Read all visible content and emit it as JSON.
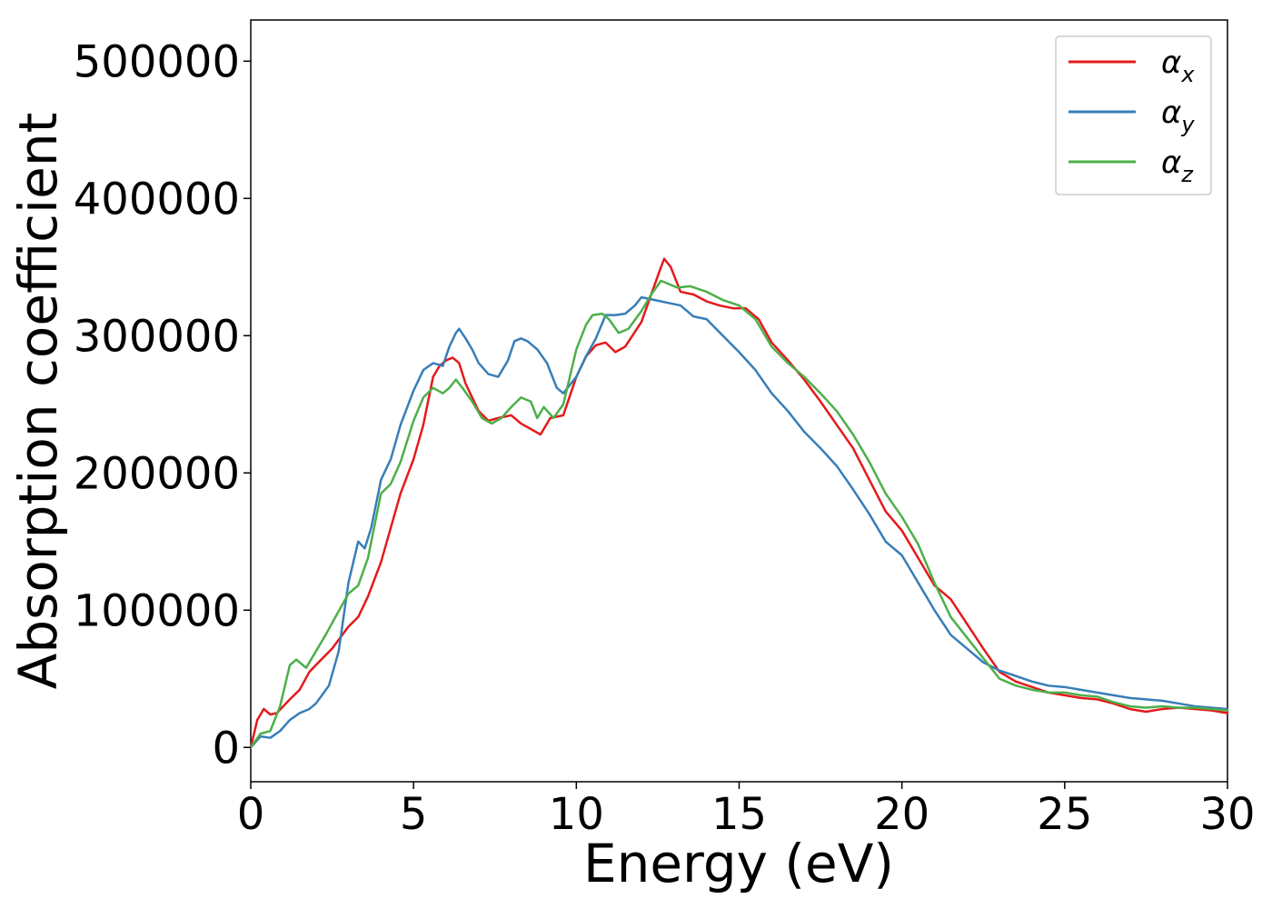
{
  "chart_data": {
    "type": "line",
    "title": "",
    "xlabel": "Energy (eV)",
    "ylabel": "Absorption coefficient",
    "xlim": [
      0,
      30
    ],
    "ylim": [
      -25000,
      530000
    ],
    "grid": false,
    "legend_position": "top-right",
    "xticks": [
      0,
      5,
      10,
      15,
      20,
      25,
      30
    ],
    "yticks": [
      0,
      100000,
      200000,
      300000,
      400000,
      500000
    ],
    "series": [
      {
        "name": "αx",
        "legend_base": "α",
        "legend_sub": "x",
        "color": "#e41a1c",
        "x": [
          0,
          0.2,
          0.4,
          0.6,
          0.8,
          1.0,
          1.2,
          1.5,
          1.8,
          2.0,
          2.5,
          3.0,
          3.3,
          3.6,
          4.0,
          4.3,
          4.6,
          5.0,
          5.3,
          5.6,
          5.8,
          6.0,
          6.2,
          6.4,
          6.6,
          6.8,
          7.0,
          7.3,
          7.6,
          8.0,
          8.3,
          8.6,
          8.9,
          9.2,
          9.6,
          10.0,
          10.3,
          10.6,
          10.9,
          11.2,
          11.5,
          12.0,
          12.3,
          12.6,
          12.7,
          12.9,
          13.2,
          13.6,
          14.0,
          14.4,
          14.8,
          15.2,
          15.6,
          16.0,
          16.5,
          17.0,
          17.5,
          18.0,
          18.5,
          19.0,
          19.5,
          20.0,
          20.5,
          21.0,
          21.5,
          22.0,
          22.5,
          23.0,
          23.5,
          24.0,
          24.5,
          25.0,
          25.5,
          26.0,
          26.5,
          27.0,
          27.5,
          28.0,
          28.5,
          29.0,
          29.5,
          30.0
        ],
        "y": [
          0,
          20000,
          28000,
          24000,
          25000,
          30000,
          35000,
          42000,
          55000,
          60000,
          72000,
          88000,
          95000,
          110000,
          135000,
          160000,
          185000,
          210000,
          235000,
          270000,
          278000,
          282000,
          284000,
          280000,
          265000,
          255000,
          245000,
          238000,
          240000,
          242000,
          236000,
          232000,
          228000,
          240000,
          242000,
          270000,
          285000,
          293000,
          295000,
          288000,
          292000,
          310000,
          330000,
          350000,
          356000,
          350000,
          332000,
          330000,
          325000,
          322000,
          320000,
          320000,
          312000,
          295000,
          282000,
          268000,
          252000,
          235000,
          218000,
          195000,
          172000,
          158000,
          138000,
          118000,
          108000,
          90000,
          72000,
          55000,
          48000,
          44000,
          40000,
          38000,
          36000,
          35000,
          32000,
          28000,
          26000,
          28000,
          29000,
          28000,
          27000,
          25000
        ]
      },
      {
        "name": "αy",
        "legend_base": "α",
        "legend_sub": "y",
        "color": "#377eb8",
        "x": [
          0,
          0.3,
          0.6,
          0.9,
          1.2,
          1.5,
          1.8,
          2.0,
          2.4,
          2.7,
          3.0,
          3.3,
          3.5,
          3.7,
          4.0,
          4.3,
          4.6,
          5.0,
          5.3,
          5.6,
          5.9,
          6.1,
          6.3,
          6.4,
          6.6,
          6.8,
          7.0,
          7.3,
          7.6,
          7.9,
          8.1,
          8.3,
          8.5,
          8.8,
          9.1,
          9.4,
          9.6,
          10.0,
          10.3,
          10.6,
          10.9,
          11.2,
          11.5,
          11.8,
          12.0,
          12.4,
          12.8,
          13.2,
          13.6,
          14.0,
          14.5,
          15.0,
          15.5,
          16.0,
          16.5,
          17.0,
          17.5,
          18.0,
          18.5,
          19.0,
          19.5,
          20.0,
          20.5,
          21.0,
          21.5,
          22.0,
          22.5,
          23.0,
          23.5,
          24.0,
          24.5,
          25.0,
          25.5,
          26.0,
          26.5,
          27.0,
          27.5,
          28.0,
          28.5,
          29.0,
          29.5,
          30.0
        ],
        "y": [
          0,
          8000,
          7000,
          12000,
          20000,
          25000,
          28000,
          32000,
          45000,
          70000,
          120000,
          150000,
          145000,
          160000,
          195000,
          210000,
          235000,
          260000,
          275000,
          280000,
          278000,
          292000,
          302000,
          305000,
          298000,
          290000,
          280000,
          272000,
          270000,
          282000,
          296000,
          298000,
          296000,
          290000,
          280000,
          262000,
          258000,
          270000,
          285000,
          298000,
          315000,
          315000,
          316000,
          322000,
          328000,
          326000,
          324000,
          322000,
          314000,
          312000,
          300000,
          288000,
          275000,
          258000,
          245000,
          230000,
          218000,
          205000,
          188000,
          170000,
          150000,
          140000,
          120000,
          100000,
          82000,
          72000,
          62000,
          56000,
          52000,
          48000,
          45000,
          44000,
          42000,
          40000,
          38000,
          36000,
          35000,
          34000,
          32000,
          30000,
          29000,
          28000
        ]
      },
      {
        "name": "αz",
        "legend_base": "α",
        "legend_sub": "z",
        "color": "#4daf4a",
        "x": [
          0,
          0.3,
          0.6,
          0.9,
          1.2,
          1.4,
          1.7,
          2.0,
          2.3,
          2.6,
          3.0,
          3.3,
          3.6,
          4.0,
          4.3,
          4.6,
          5.0,
          5.3,
          5.6,
          5.9,
          6.1,
          6.3,
          6.5,
          6.8,
          7.1,
          7.4,
          7.7,
          8.0,
          8.3,
          8.6,
          8.8,
          9.0,
          9.3,
          9.6,
          10.0,
          10.3,
          10.5,
          10.8,
          11.0,
          11.3,
          11.6,
          12.0,
          12.3,
          12.6,
          12.8,
          13.1,
          13.5,
          14.0,
          14.5,
          15.0,
          15.5,
          16.0,
          16.5,
          17.0,
          17.5,
          18.0,
          18.5,
          19.0,
          19.5,
          20.0,
          20.5,
          21.0,
          21.5,
          22.0,
          22.5,
          23.0,
          23.5,
          24.0,
          24.5,
          25.0,
          25.5,
          26.0,
          26.5,
          27.0,
          27.5,
          28.0,
          28.5,
          29.0,
          29.5,
          30.0
        ],
        "y": [
          0,
          10000,
          12000,
          30000,
          60000,
          64000,
          58000,
          70000,
          82000,
          95000,
          112000,
          118000,
          138000,
          185000,
          192000,
          208000,
          238000,
          255000,
          262000,
          258000,
          262000,
          268000,
          262000,
          252000,
          240000,
          236000,
          240000,
          248000,
          255000,
          252000,
          240000,
          248000,
          240000,
          250000,
          290000,
          308000,
          315000,
          316000,
          312000,
          302000,
          305000,
          318000,
          330000,
          340000,
          338000,
          335000,
          336000,
          332000,
          326000,
          322000,
          312000,
          292000,
          280000,
          270000,
          258000,
          245000,
          228000,
          208000,
          185000,
          168000,
          148000,
          120000,
          95000,
          80000,
          65000,
          50000,
          45000,
          42000,
          40000,
          40000,
          38000,
          37000,
          33000,
          30000,
          29000,
          30000,
          29000,
          29000,
          28000,
          27000
        ]
      }
    ]
  }
}
